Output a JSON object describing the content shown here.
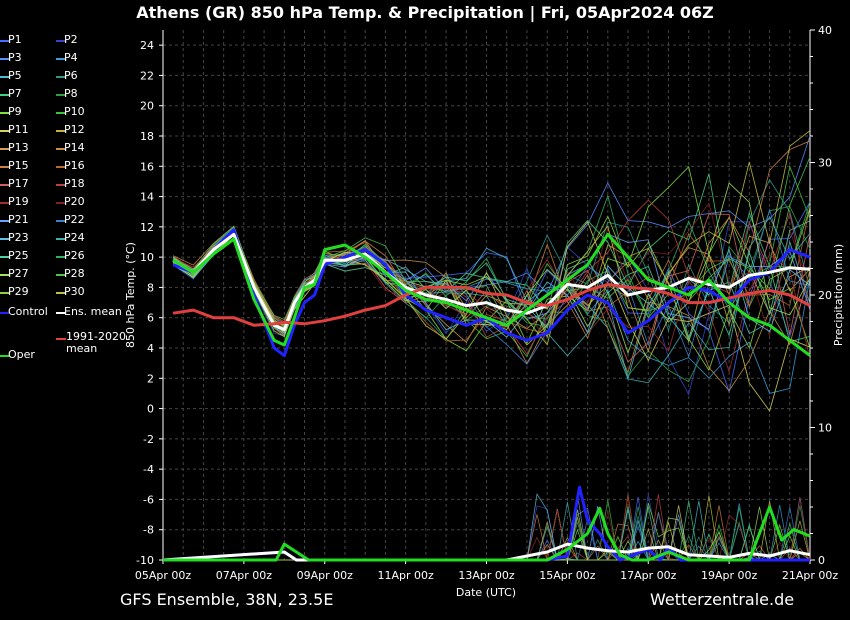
{
  "title": "Athens  (GR)  850 hPa Temp. & Precipitation | Fri, 05Apr2024 06Z",
  "footer": {
    "left": "GFS Ensemble, 38N, 23.5E",
    "right": "Wetterzentrale.de"
  },
  "legend": [
    {
      "label": "P1",
      "color": "#4a6bff"
    },
    {
      "label": "P2",
      "color": "#3344cc"
    },
    {
      "label": "P3",
      "color": "#5a8cff"
    },
    {
      "label": "P4",
      "color": "#3aa0d8"
    },
    {
      "label": "P5",
      "color": "#44c0d0"
    },
    {
      "label": "P6",
      "color": "#2a9a8a"
    },
    {
      "label": "P7",
      "color": "#44d080"
    },
    {
      "label": "P8",
      "color": "#2fa040"
    },
    {
      "label": "P9",
      "color": "#80e040"
    },
    {
      "label": "P10",
      "color": "#40c040"
    },
    {
      "label": "P11",
      "color": "#d8d060"
    },
    {
      "label": "P12",
      "color": "#c8b040"
    },
    {
      "label": "P13",
      "color": "#d0a050"
    },
    {
      "label": "P14",
      "color": "#c89048"
    },
    {
      "label": "P15",
      "color": "#d08040"
    },
    {
      "label": "P16",
      "color": "#b86a30"
    },
    {
      "label": "P17",
      "color": "#d06060"
    },
    {
      "label": "P18",
      "color": "#c04040"
    },
    {
      "label": "P19",
      "color": "#a03030"
    },
    {
      "label": "P20",
      "color": "#802020"
    },
    {
      "label": "P21",
      "color": "#6aa0ff"
    },
    {
      "label": "P22",
      "color": "#3a80d0"
    },
    {
      "label": "P23",
      "color": "#60c0e0"
    },
    {
      "label": "P24",
      "color": "#40b0b0"
    },
    {
      "label": "P25",
      "color": "#50d0a0"
    },
    {
      "label": "P26",
      "color": "#30b060"
    },
    {
      "label": "P27",
      "color": "#a0e060"
    },
    {
      "label": "P28",
      "color": "#50c050"
    },
    {
      "label": "P29",
      "color": "#90d040"
    },
    {
      "label": "P30",
      "color": "#c0c040"
    },
    {
      "label": "Control",
      "color": "#2222ff"
    },
    {
      "label": "Ens. mean",
      "color": "#ffffff"
    },
    {
      "label": "1991-2020 mean",
      "color": "#e04040"
    },
    {
      "label": "Oper",
      "color": "#22dd22"
    }
  ],
  "chart_data": {
    "type": "line",
    "xlabel": "Date (UTC)",
    "ylabel": "850 hPa Temp. (°C)",
    "y2label": "Precipitation (mm)",
    "x_ticks": [
      "05Apr 00z",
      "07Apr 00z",
      "09Apr 00z",
      "11Apr 00z",
      "13Apr 00z",
      "15Apr 00z",
      "17Apr 00z",
      "19Apr 00z",
      "21Apr 00z"
    ],
    "xlim_days": [
      0,
      16
    ],
    "ylim": [
      -10,
      25
    ],
    "y_ticks": [
      -10,
      -8,
      -6,
      -4,
      -2,
      0,
      2,
      4,
      6,
      8,
      10,
      12,
      14,
      16,
      18,
      20,
      22,
      24
    ],
    "y2lim": [
      0,
      40
    ],
    "y2_ticks": [
      0,
      10,
      20,
      30,
      40
    ],
    "grid": true,
    "legend_position": "left",
    "key_series": [
      {
        "name": "Control",
        "color": "#2222ff",
        "x": [
          0.25,
          0.75,
          1.25,
          1.75,
          2.25,
          2.75,
          3.0,
          3.25,
          3.5,
          3.75,
          4.0,
          4.5,
          5.0,
          5.5,
          6.0,
          6.5,
          7.0,
          7.5,
          8.0,
          8.5,
          9.0,
          9.5,
          10.0,
          10.5,
          11.0,
          11.5,
          12.0,
          12.5,
          13.0,
          13.5,
          14.0,
          14.5,
          15.0,
          15.5,
          16.0
        ],
        "y": [
          9.5,
          9.0,
          10.5,
          11.8,
          7.5,
          4.0,
          3.5,
          5.5,
          7.0,
          7.5,
          9.5,
          10.0,
          10.5,
          9.5,
          7.5,
          6.5,
          6.0,
          5.5,
          6.0,
          5.0,
          4.5,
          5.0,
          6.5,
          7.5,
          7.0,
          5.0,
          5.8,
          7.0,
          8.0,
          7.8,
          7.0,
          8.5,
          9.0,
          10.5,
          10.0
        ]
      },
      {
        "name": "Ens. mean",
        "color": "#ffffff",
        "x": [
          0.25,
          0.75,
          1.25,
          1.75,
          2.25,
          2.75,
          3.0,
          3.25,
          3.5,
          3.75,
          4.0,
          4.5,
          5.0,
          5.5,
          6.0,
          6.5,
          7.0,
          7.5,
          8.0,
          8.5,
          9.0,
          9.5,
          10.0,
          10.5,
          11.0,
          11.5,
          12.0,
          12.5,
          13.0,
          13.5,
          14.0,
          14.5,
          15.0,
          15.5,
          16.0
        ],
        "y": [
          9.8,
          9.0,
          10.5,
          11.5,
          8.0,
          5.5,
          5.2,
          7.0,
          8.0,
          8.5,
          9.8,
          9.8,
          10.2,
          9.0,
          8.0,
          7.5,
          7.2,
          6.8,
          7.0,
          6.5,
          6.3,
          6.8,
          8.2,
          8.0,
          8.8,
          7.5,
          7.8,
          8.0,
          8.6,
          8.2,
          8.0,
          8.8,
          9.0,
          9.3,
          9.2
        ]
      },
      {
        "name": "1991-2020 mean",
        "color": "#e04040",
        "x": [
          0.25,
          0.75,
          1.25,
          1.75,
          2.25,
          2.75,
          3.0,
          3.5,
          4.0,
          4.5,
          5.0,
          5.5,
          6.0,
          6.5,
          7.0,
          7.5,
          8.0,
          8.5,
          9.0,
          9.5,
          10.0,
          10.5,
          11.0,
          11.5,
          12.0,
          12.5,
          13.0,
          13.5,
          14.0,
          14.5,
          15.0,
          15.5,
          16.0
        ],
        "y": [
          6.3,
          6.5,
          6.0,
          6.0,
          5.5,
          5.6,
          5.7,
          5.6,
          5.8,
          6.1,
          6.5,
          6.8,
          7.5,
          8.0,
          8.0,
          8.0,
          7.6,
          7.5,
          7.0,
          6.8,
          7.2,
          7.8,
          8.2,
          8.0,
          7.9,
          7.6,
          7.0,
          7.0,
          7.3,
          7.6,
          7.8,
          7.5,
          6.8
        ]
      },
      {
        "name": "Oper",
        "color": "#22dd22",
        "x": [
          0.25,
          0.75,
          1.25,
          1.75,
          2.25,
          2.75,
          3.0,
          3.25,
          3.5,
          3.75,
          4.0,
          4.5,
          5.0,
          5.5,
          6.0,
          6.5,
          7.0,
          7.5,
          8.0,
          8.5,
          9.0,
          9.5,
          10.0,
          10.5,
          11.0,
          11.5,
          12.0,
          12.5,
          13.0,
          13.5,
          14.0,
          14.5,
          15.0,
          15.5,
          16.0
        ],
        "y": [
          9.8,
          9.0,
          10.2,
          11.2,
          7.2,
          4.5,
          4.2,
          6.0,
          8.0,
          8.2,
          10.5,
          10.8,
          10.0,
          9.0,
          7.8,
          7.2,
          7.0,
          6.5,
          6.0,
          5.5,
          6.5,
          7.5,
          8.5,
          9.5,
          11.5,
          10.0,
          8.5,
          8.0,
          7.5,
          8.5,
          7.0,
          6.0,
          5.5,
          4.5,
          3.5
        ]
      }
    ],
    "precip_series": [
      {
        "name": "Control",
        "color": "#2222ff",
        "x": [
          0,
          3.0,
          3.3,
          3.6,
          9.5,
          10.0,
          10.3,
          10.5,
          10.8,
          11.0,
          11.3,
          12.0,
          12.3,
          12.5,
          12.8,
          16.0
        ],
        "y": [
          0,
          0.6,
          0,
          0,
          0,
          0.3,
          5.5,
          3.0,
          2.0,
          1.0,
          0,
          0.8,
          0,
          1.0,
          0,
          0
        ]
      },
      {
        "name": "Ens. mean",
        "color": "#ffffff",
        "x": [
          0,
          3.0,
          3.3,
          3.6,
          8.5,
          9.0,
          9.5,
          10.0,
          10.5,
          11.0,
          11.5,
          12.0,
          12.5,
          13.0,
          13.5,
          14.0,
          14.5,
          15.0,
          15.5,
          16.0
        ],
        "y": [
          0,
          0.6,
          0,
          0,
          0,
          0.3,
          0.6,
          1.2,
          0.9,
          0.7,
          0.6,
          0.9,
          1.0,
          0.4,
          0.3,
          0.2,
          0.5,
          0.3,
          0.7,
          0.4
        ]
      },
      {
        "name": "Oper",
        "color": "#22dd22",
        "x": [
          0,
          2.8,
          3.0,
          3.3,
          3.6,
          9.5,
          10.0,
          10.5,
          10.8,
          11.0,
          11.3,
          11.6,
          12.0,
          12.5,
          13.0,
          14.5,
          15.0,
          15.3,
          15.6,
          16.0
        ],
        "y": [
          0,
          0,
          1.2,
          0.6,
          0,
          0,
          0.8,
          2.0,
          3.9,
          2.0,
          0.4,
          0,
          0,
          0.6,
          0,
          0,
          4.0,
          1.5,
          2.3,
          1.8
        ]
      }
    ]
  }
}
